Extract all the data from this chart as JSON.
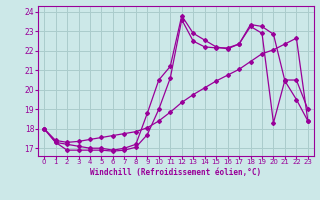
{
  "xlabel": "Windchill (Refroidissement éolien,°C)",
  "bg_color": "#cce8e8",
  "grid_color": "#aacccc",
  "line_color": "#990099",
  "xlim": [
    -0.5,
    23.5
  ],
  "ylim": [
    16.6,
    24.3
  ],
  "xticks": [
    0,
    1,
    2,
    3,
    4,
    5,
    6,
    7,
    8,
    9,
    10,
    11,
    12,
    13,
    14,
    15,
    16,
    17,
    18,
    19,
    20,
    21,
    22,
    23
  ],
  "yticks": [
    17,
    18,
    19,
    20,
    21,
    22,
    23,
    24
  ],
  "line1_x": [
    0,
    1,
    2,
    3,
    4,
    5,
    6,
    7,
    8,
    9,
    10,
    11,
    12,
    13,
    14,
    15,
    16,
    17,
    18,
    19,
    20,
    21,
    22,
    23
  ],
  "line1_y": [
    18.0,
    17.3,
    16.9,
    16.9,
    16.9,
    16.9,
    16.85,
    16.9,
    17.05,
    17.7,
    19.0,
    20.6,
    23.6,
    22.5,
    22.2,
    22.15,
    22.15,
    22.35,
    23.25,
    22.9,
    18.3,
    20.5,
    20.5,
    19.0
  ],
  "line2_x": [
    0,
    1,
    2,
    3,
    4,
    5,
    6,
    7,
    8,
    9,
    10,
    11,
    12,
    13,
    14,
    15,
    16,
    17,
    18,
    19,
    20,
    21,
    22,
    23
  ],
  "line2_y": [
    18.0,
    17.3,
    17.2,
    17.1,
    17.0,
    17.0,
    16.9,
    17.0,
    17.2,
    18.8,
    20.5,
    21.2,
    23.8,
    22.9,
    22.55,
    22.2,
    22.1,
    22.35,
    23.35,
    23.25,
    22.85,
    20.45,
    19.5,
    18.4
  ],
  "line3_x": [
    0,
    1,
    2,
    3,
    4,
    5,
    6,
    7,
    8,
    9,
    10,
    11,
    12,
    13,
    14,
    15,
    16,
    17,
    18,
    19,
    20,
    21,
    22,
    23
  ],
  "line3_y": [
    18.0,
    17.4,
    17.3,
    17.35,
    17.45,
    17.55,
    17.65,
    17.75,
    17.85,
    18.05,
    18.4,
    18.85,
    19.35,
    19.75,
    20.1,
    20.45,
    20.75,
    21.05,
    21.45,
    21.85,
    22.05,
    22.35,
    22.65,
    18.4
  ]
}
